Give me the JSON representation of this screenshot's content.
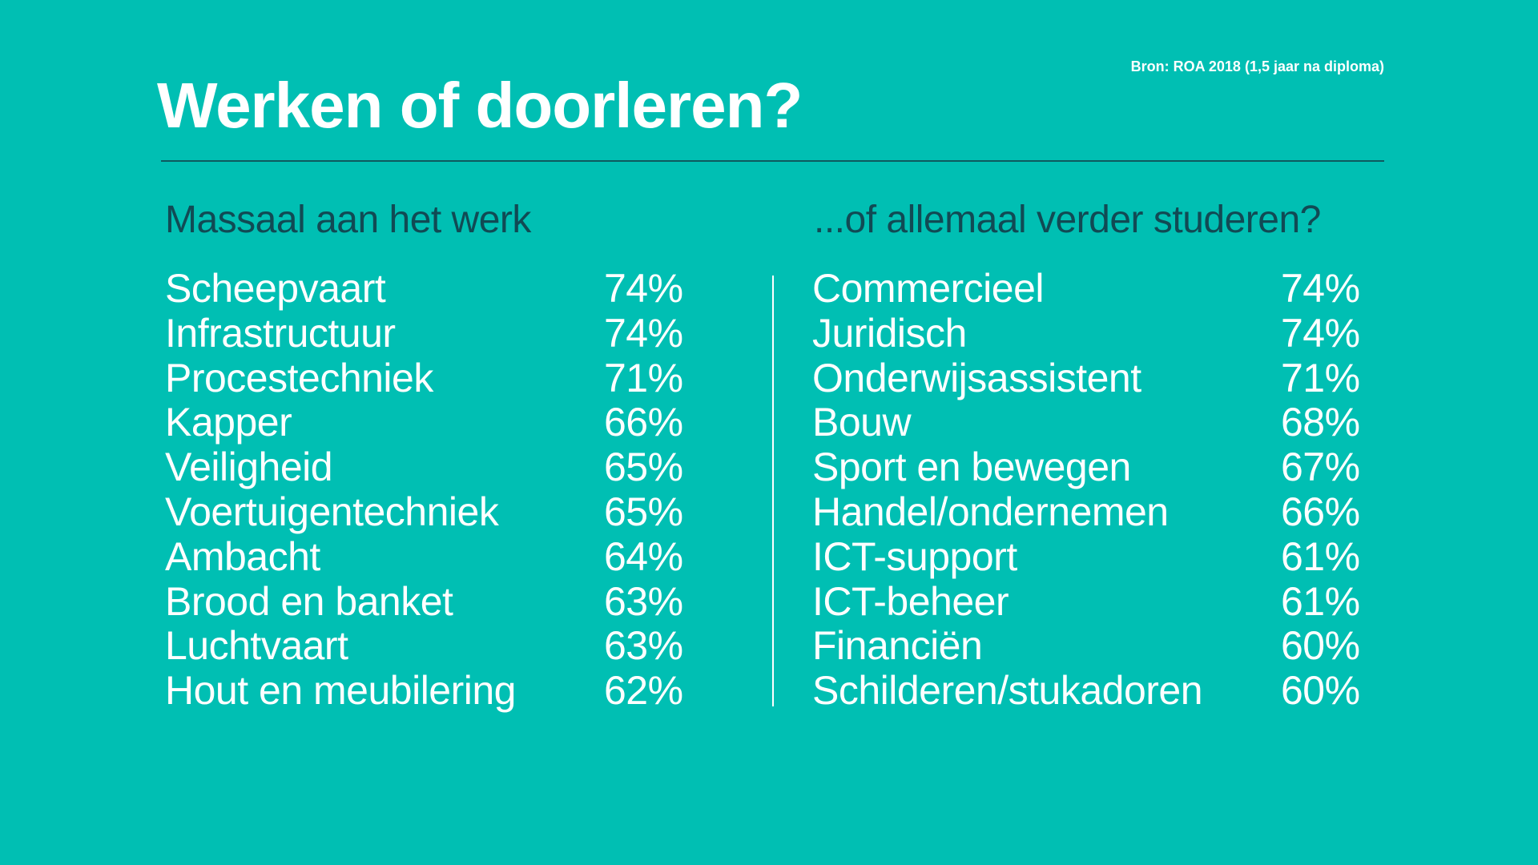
{
  "title": "Werken of doorleren?",
  "source": "Bron: ROA 2018 (1,5 jaar na diploma)",
  "colors": {
    "background": "#00bfb3",
    "text": "#ffffff",
    "heading": "#114a54",
    "rule": "#0e5a5e",
    "divider": "#ffffff"
  },
  "chart_data": {
    "type": "table",
    "title": "Werken of doorleren?",
    "tables": [
      {
        "heading": "Massaal aan het werk",
        "rows": [
          {
            "label": "Scheepvaart",
            "value": "74%"
          },
          {
            "label": "Infrastructuur",
            "value": "74%"
          },
          {
            "label": "Procestechniek",
            "value": "71%"
          },
          {
            "label": "Kapper",
            "value": "66%"
          },
          {
            "label": "Veiligheid",
            "value": "65%"
          },
          {
            "label": "Voertuigentechniek",
            "value": "65%"
          },
          {
            "label": "Ambacht",
            "value": "64%"
          },
          {
            "label": "Brood en banket",
            "value": "63%"
          },
          {
            "label": "Luchtvaart",
            "value": "63%"
          },
          {
            "label": "Hout en meubilering",
            "value": "62%"
          }
        ]
      },
      {
        "heading": "...of allemaal verder studeren?",
        "rows": [
          {
            "label": "Commercieel",
            "value": "74%"
          },
          {
            "label": "Juridisch",
            "value": "74%"
          },
          {
            "label": "Onderwijsassistent",
            "value": "71%"
          },
          {
            "label": "Bouw",
            "value": "68%"
          },
          {
            "label": "Sport en bewegen",
            "value": "67%"
          },
          {
            "label": "Handel/ondernemen",
            "value": "66%"
          },
          {
            "label": "ICT-support",
            "value": "61%"
          },
          {
            "label": "ICT-beheer",
            "value": "61%"
          },
          {
            "label": "Financiën",
            "value": "60%"
          },
          {
            "label": "Schilderen/stukadoren",
            "value": "60%"
          }
        ]
      }
    ]
  }
}
